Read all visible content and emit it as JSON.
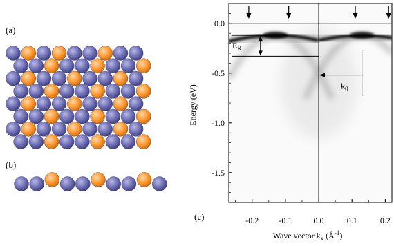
{
  "panels": {
    "a": "(a)",
    "b": "(b)",
    "c": "(c)"
  },
  "atom_colors": {
    "substrate": "#6f6fb6",
    "adatom": "#ff9a33",
    "outline": "#2d2d60"
  },
  "lattice": {
    "rows": [
      "BOBOBBOBB",
      "BBOBBOBBO",
      "BOBBOBBOB",
      "BBOBBOBBO",
      "BOBBOBBOB",
      "BBOBBOBBO",
      "BOBBOBBOB",
      "BBOBBOBBO"
    ],
    "side_row": "BBOBBOBBOB"
  },
  "chart_data": {
    "type": "heatmap",
    "xlabel": "Wave vector k",
    "xlabel_sub": "x",
    "xlabel_unit": "(Å",
    "xlabel_unit_sup": "-1",
    "xlabel_unit_close": ")",
    "ylabel": "Energy (eV)",
    "xlim": [
      -0.27,
      0.22
    ],
    "ylim": [
      -1.8,
      0.2
    ],
    "x_ticks": [
      {
        "value": -0.2,
        "label": "-0.2"
      },
      {
        "value": -0.1,
        "label": "-0.1"
      },
      {
        "value": 0.0,
        "label": "0.0"
      },
      {
        "value": 0.1,
        "label": "0.1"
      },
      {
        "value": 0.2,
        "label": "0.2"
      }
    ],
    "y_ticks": [
      {
        "value": 0.0,
        "label": "0.0"
      },
      {
        "value": -0.5,
        "label": "-0.5"
      },
      {
        "value": -1.0,
        "label": "-1.0"
      },
      {
        "value": -1.5,
        "label": "-1.5"
      }
    ],
    "arrows_at_k": [
      -0.21,
      -0.09,
      0.11,
      0.21
    ],
    "bands": [
      {
        "k0": -0.13,
        "E0": -0.12,
        "mass": -3.2,
        "kmin": -0.27,
        "kmax": 0.0
      },
      {
        "k0": 0.13,
        "E0": -0.12,
        "mass": -3.2,
        "kmin": 0.0,
        "kmax": 0.22
      }
    ],
    "faint_bands": [
      {
        "k0": -0.13,
        "E0": -0.12,
        "mass": -22,
        "kmin": -0.27,
        "kmax": 0.04
      },
      {
        "k0": 0.13,
        "E0": -0.12,
        "mass": -22,
        "kmin": -0.04,
        "kmax": 0.22
      }
    ],
    "annotations": {
      "ER": {
        "label": "E",
        "sub": "R",
        "E_top": -0.12,
        "E_bottom": -0.33
      },
      "k0": {
        "label": "k",
        "sub": "0",
        "k_from": 0.0,
        "k_to": 0.13,
        "E": -0.52
      }
    }
  }
}
